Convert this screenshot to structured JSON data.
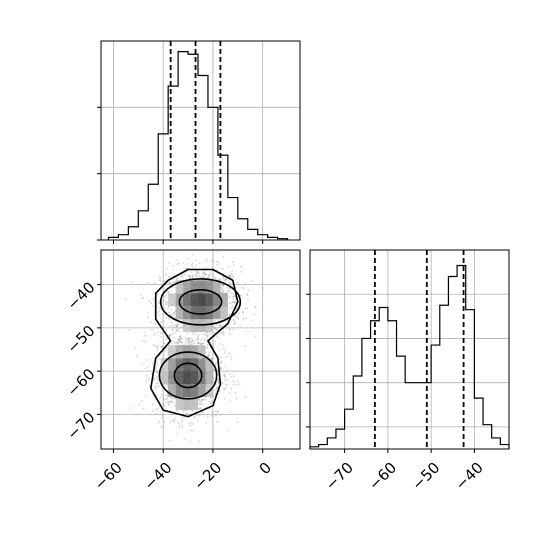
{
  "chart_data": [
    {
      "type": "histogram",
      "panel": "top-left",
      "variable_index": 0,
      "xlim": [
        -65,
        15
      ],
      "bins": [
        -62,
        -58,
        -54,
        -50,
        -46,
        -42,
        -38,
        -34,
        -30,
        -26,
        -22,
        -18,
        -14,
        -10,
        -6,
        -2,
        2,
        6,
        10
      ],
      "counts": [
        1,
        2,
        5,
        11,
        21,
        40,
        58,
        71,
        70,
        62,
        50,
        32,
        16,
        8,
        4,
        2,
        1,
        0.5
      ],
      "ylim": [
        0,
        75
      ],
      "quantiles": [
        -37,
        -27,
        -17
      ],
      "xticks": [
        -60,
        -40,
        -20,
        0
      ],
      "xtick_labels": [
        "−60",
        "−40",
        "−20",
        "0"
      ],
      "yticks": [
        0,
        25,
        50
      ],
      "grid": true
    },
    {
      "type": "scatter",
      "panel": "bottom-left",
      "xlim": [
        -65,
        15
      ],
      "ylim": [
        -78,
        -32
      ],
      "clusters": [
        {
          "center": [
            -25,
            -44
          ],
          "spread": [
            8,
            4
          ],
          "share": 0.5
        },
        {
          "center": [
            -30,
            -61
          ],
          "spread": [
            7,
            5
          ],
          "share": 0.5
        }
      ],
      "contour_levels": 3,
      "xticks": [
        -60,
        -40,
        -20,
        0
      ],
      "xtick_labels": [
        "−60",
        "−40",
        "−20",
        "0"
      ],
      "yticks": [
        -40,
        -50,
        -60,
        -70
      ],
      "ytick_labels": [
        "−40",
        "−50",
        "−60",
        "−70"
      ],
      "grid": true
    },
    {
      "type": "histogram",
      "panel": "bottom-right",
      "variable_index": 1,
      "xlim": [
        -78,
        -32
      ],
      "bins": [
        -78,
        -76,
        -74,
        -72,
        -70,
        -68,
        -66,
        -64,
        -62,
        -60,
        -58,
        -56,
        -54,
        -52,
        -50,
        -48,
        -46,
        -44,
        -42,
        -40,
        -38,
        -36,
        -34,
        -32
      ],
      "counts": [
        1,
        2,
        5,
        9,
        18,
        33,
        50,
        58,
        64,
        58,
        42,
        30,
        30,
        30,
        47,
        65,
        78,
        83,
        63,
        23,
        11,
        5,
        2
      ],
      "ylim": [
        0,
        90
      ],
      "quantiles": [
        -63,
        -51,
        -42.5
      ],
      "xticks": [
        -70,
        -60,
        -50,
        -40
      ],
      "xtick_labels": [
        "−70",
        "−60",
        "−50",
        "−40"
      ],
      "yticks": [
        10,
        30,
        50,
        70
      ],
      "grid": true
    }
  ]
}
